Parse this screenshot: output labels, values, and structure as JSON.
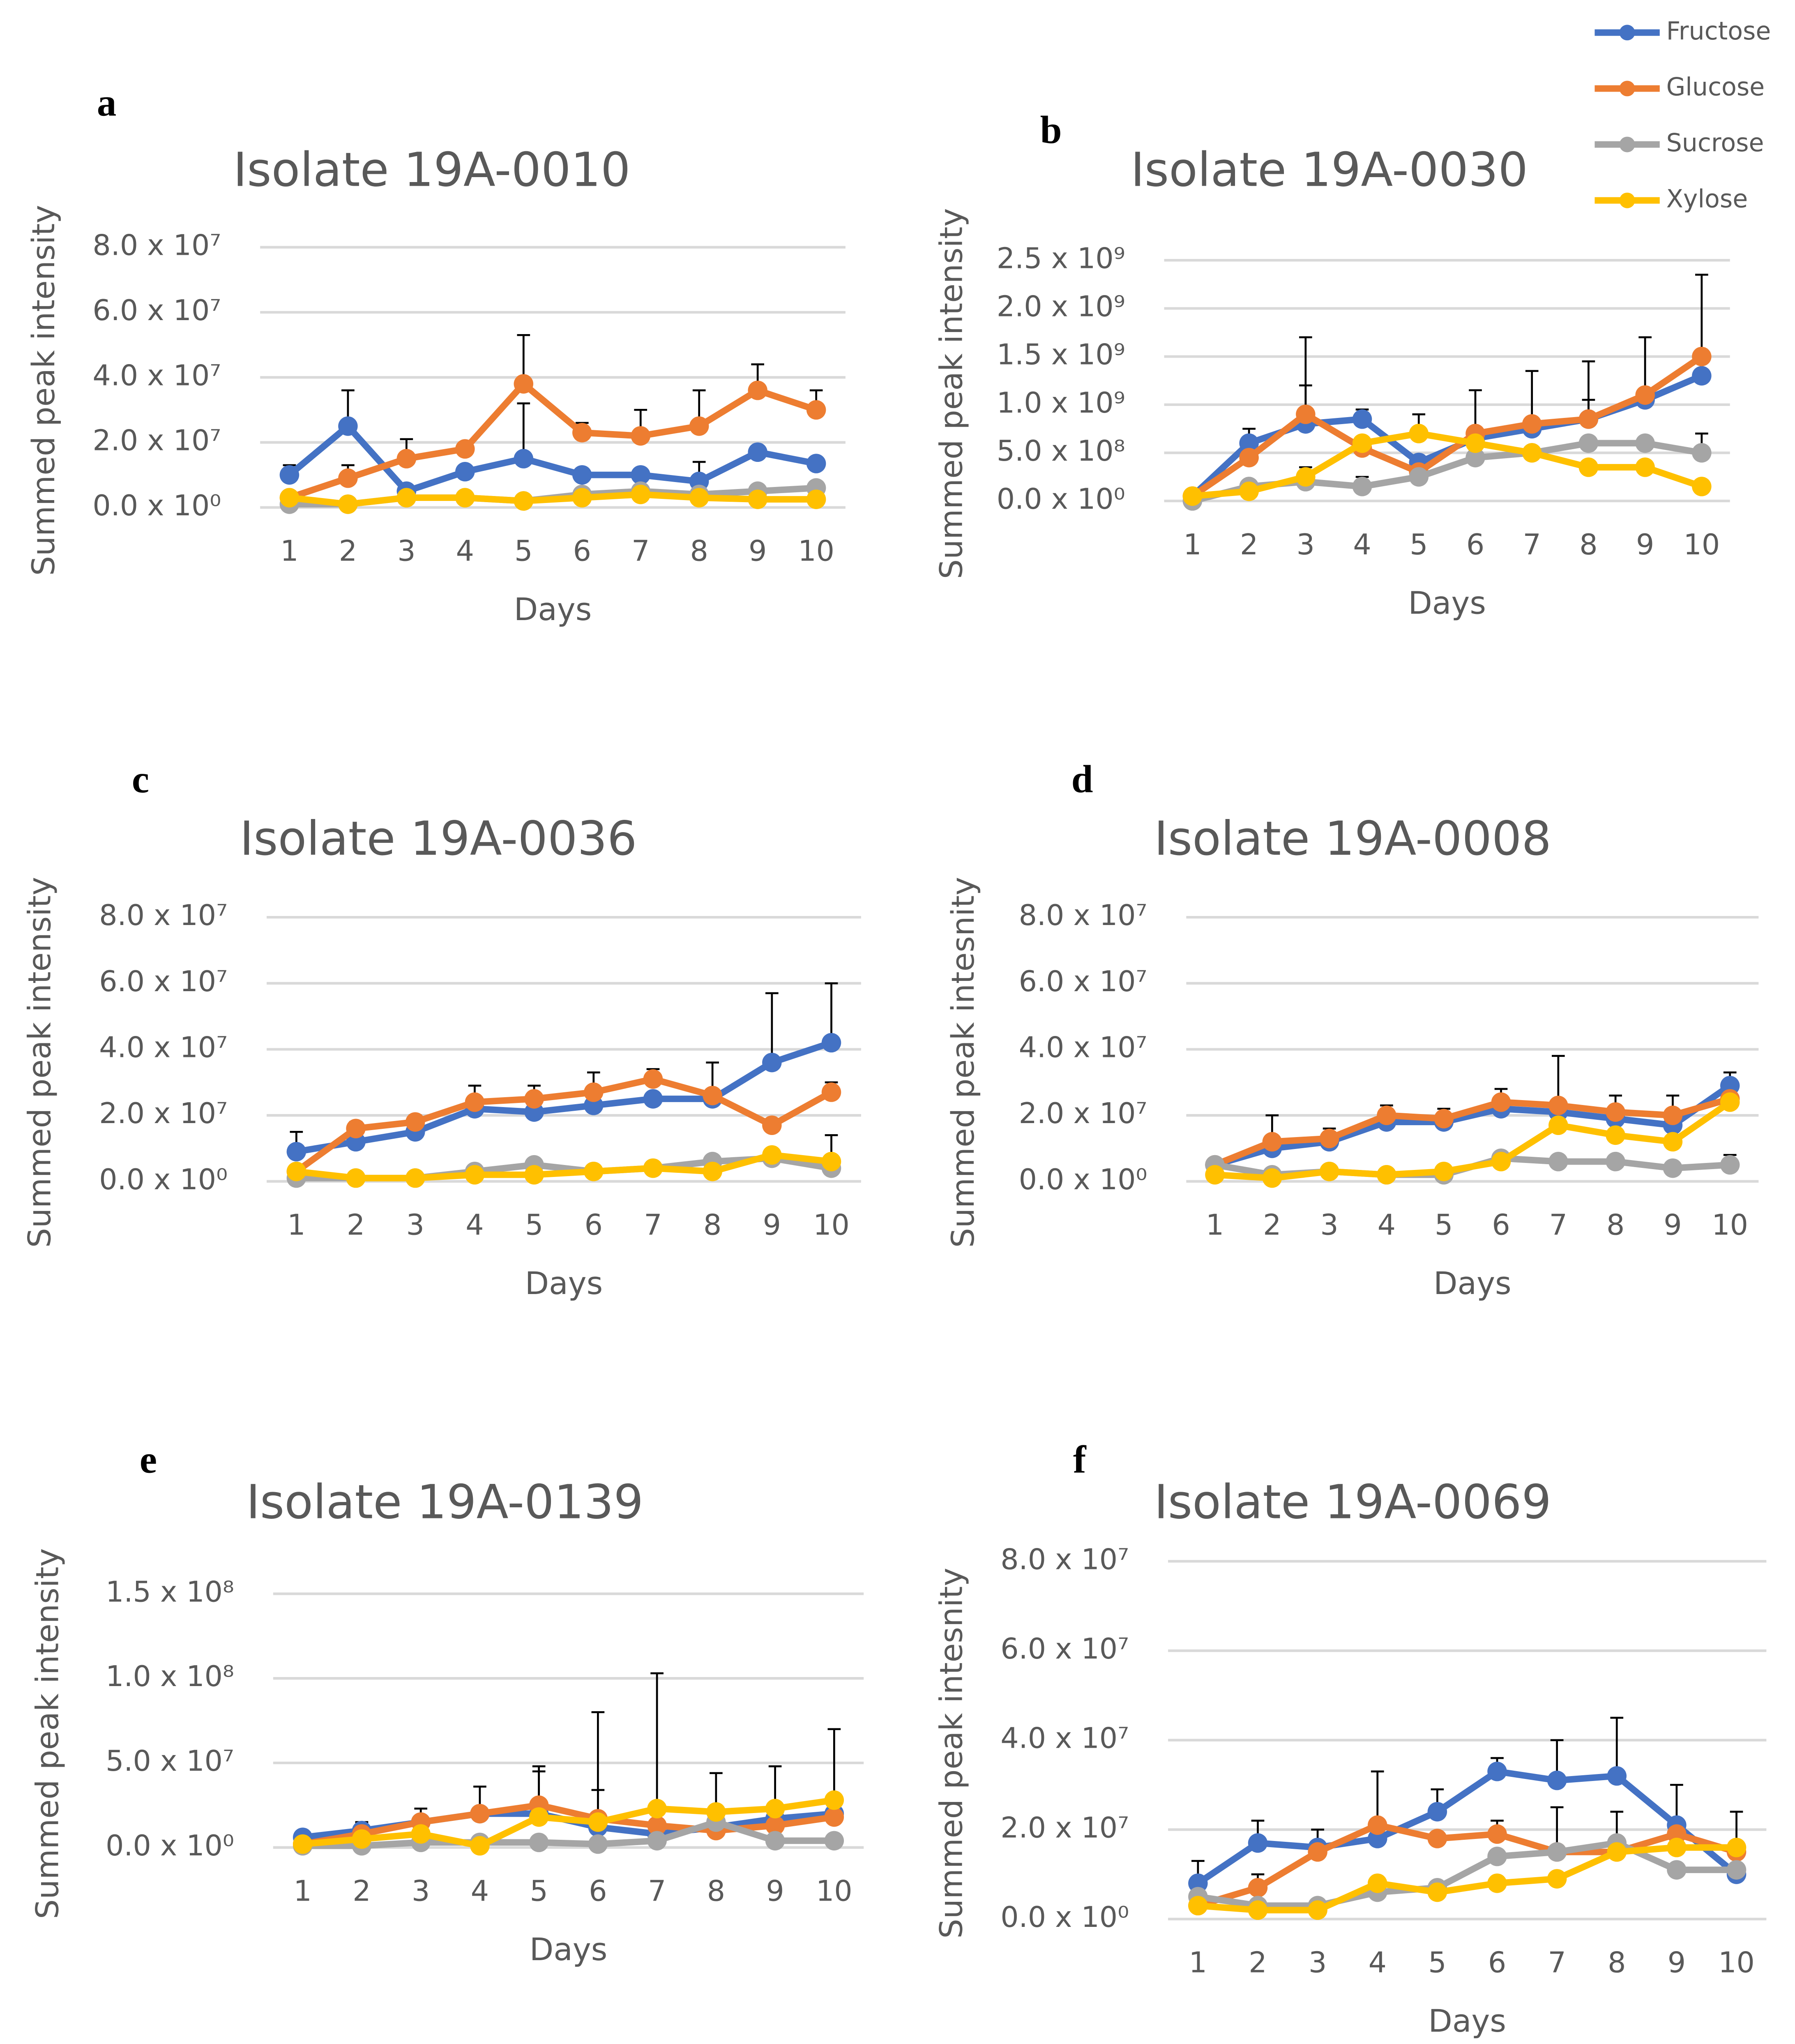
{
  "chart_data": [
    {
      "type": "line",
      "panel": "a",
      "title": "Isolate 19A-0010",
      "xlabel": "Days",
      "ylabel": "Summed peak intensity",
      "categories": [
        1,
        2,
        3,
        4,
        5,
        6,
        7,
        8,
        9,
        10
      ],
      "ylim": [
        0,
        80000000.0
      ],
      "yticks": [
        {
          "value": 0,
          "label": "0.0 x 10⁰"
        },
        {
          "value": 20000000.0,
          "label": "2.0 x 10⁷"
        },
        {
          "value": 40000000.0,
          "label": "4.0 x 10⁷"
        },
        {
          "value": 60000000.0,
          "label": "6.0 x 10⁷"
        },
        {
          "value": 80000000.0,
          "label": "8.0 x 10⁷"
        }
      ],
      "grid": true,
      "series": [
        {
          "name": "Fructose",
          "color": "#4472c4",
          "values": [
            10000000.0,
            25000000.0,
            5000000.0,
            11000000.0,
            15000000.0,
            10000000.0,
            10000000.0,
            8000000.0,
            17000000.0,
            13500000.0
          ],
          "errors": [
            3000000.0,
            11000000.0,
            null,
            null,
            17000000.0,
            null,
            null,
            6000000.0,
            null,
            null
          ]
        },
        {
          "name": "Glucose",
          "color": "#ed7d31",
          "values": [
            3000000.0,
            9000000.0,
            15000000.0,
            18000000.0,
            38000000.0,
            23000000.0,
            22000000.0,
            25000000.0,
            36000000.0,
            30000000.0
          ],
          "errors": [
            null,
            4000000.0,
            6000000.0,
            null,
            15000000.0,
            3000000.0,
            8000000.0,
            11000000.0,
            8000000.0,
            6000000.0
          ]
        },
        {
          "name": "Sucrose",
          "color": "#a5a5a5",
          "values": [
            1000000.0,
            1000000.0,
            3000000.0,
            3000000.0,
            2000000.0,
            4000000.0,
            5000000.0,
            4000000.0,
            5000000.0,
            6000000.0
          ]
        },
        {
          "name": "Xylose",
          "color": "#ffc000",
          "values": [
            3000000.0,
            1000000.0,
            3000000.0,
            3000000.0,
            2000000.0,
            3000000.0,
            4000000.0,
            3000000.0,
            2500000.0,
            2500000.0
          ]
        }
      ]
    },
    {
      "type": "line",
      "panel": "b",
      "title": "Isolate 19A-0030",
      "xlabel": "Days",
      "ylabel": "Summed peak intensity",
      "categories": [
        1,
        2,
        3,
        4,
        5,
        6,
        7,
        8,
        9,
        10
      ],
      "ylim": [
        0,
        2500000000.0
      ],
      "yticks": [
        {
          "value": 0,
          "label": "0.0 x 10⁰"
        },
        {
          "value": 500000000.0,
          "label": "5.0 x 10⁸"
        },
        {
          "value": 1000000000.0,
          "label": "1.0 x 10⁹"
        },
        {
          "value": 1500000000.0,
          "label": "1.5 x 10⁹"
        },
        {
          "value": 2000000000.0,
          "label": "2.0 x 10⁹"
        },
        {
          "value": 2500000000.0,
          "label": "2.5 x 10⁹"
        }
      ],
      "grid": true,
      "series": [
        {
          "name": "Fructose",
          "color": "#4472c4",
          "values": [
            50000000.0,
            600000000.0,
            800000000.0,
            850000000.0,
            400000000.0,
            650000000.0,
            750000000.0,
            850000000.0,
            1050000000.0,
            1300000000.0
          ],
          "errors": [
            null,
            150000000.0,
            400000000.0,
            100000000.0,
            null,
            null,
            null,
            200000000.0,
            null,
            null
          ]
        },
        {
          "name": "Glucose",
          "color": "#ed7d31",
          "values": [
            50000000.0,
            450000000.0,
            900000000.0,
            550000000.0,
            300000000.0,
            700000000.0,
            800000000.0,
            850000000.0,
            1100000000.0,
            1500000000.0
          ],
          "errors": [
            null,
            null,
            800000000.0,
            null,
            null,
            450000000.0,
            550000000.0,
            600000000.0,
            600000000.0,
            850000000.0
          ]
        },
        {
          "name": "Sucrose",
          "color": "#a5a5a5",
          "values": [
            0,
            150000000.0,
            200000000.0,
            150000000.0,
            250000000.0,
            450000000.0,
            500000000.0,
            600000000.0,
            600000000.0,
            500000000.0
          ],
          "errors": [
            null,
            null,
            150000000.0,
            100000000.0,
            null,
            null,
            null,
            null,
            null,
            200000000.0
          ]
        },
        {
          "name": "Xylose",
          "color": "#ffc000",
          "values": [
            50000000.0,
            100000000.0,
            250000000.0,
            600000000.0,
            700000000.0,
            600000000.0,
            500000000.0,
            350000000.0,
            350000000.0,
            150000000.0
          ],
          "errors": [
            null,
            null,
            null,
            null,
            200000000.0,
            null,
            null,
            null,
            null,
            null
          ]
        }
      ]
    },
    {
      "type": "line",
      "panel": "c",
      "title": "Isolate 19A-0036",
      "xlabel": "Days",
      "ylabel": "Summed peak intensity",
      "categories": [
        1,
        2,
        3,
        4,
        5,
        6,
        7,
        8,
        9,
        10
      ],
      "ylim": [
        0,
        80000000.0
      ],
      "yticks": [
        {
          "value": 0,
          "label": "0.0 x 10⁰"
        },
        {
          "value": 20000000.0,
          "label": "2.0 x 10⁷"
        },
        {
          "value": 40000000.0,
          "label": "4.0 x 10⁷"
        },
        {
          "value": 60000000.0,
          "label": "6.0 x 10⁷"
        },
        {
          "value": 80000000.0,
          "label": "8.0 x 10⁷"
        }
      ],
      "grid": true,
      "series": [
        {
          "name": "Fructose",
          "color": "#4472c4",
          "values": [
            9000000.0,
            12000000.0,
            15000000.0,
            22000000.0,
            21000000.0,
            23000000.0,
            25000000.0,
            25000000.0,
            36000000.0,
            42000000.0
          ],
          "errors": [
            6000000.0,
            null,
            null,
            null,
            null,
            null,
            null,
            11000000.0,
            21000000.0,
            18000000.0
          ]
        },
        {
          "name": "Glucose",
          "color": "#ed7d31",
          "values": [
            3000000.0,
            16000000.0,
            18000000.0,
            24000000.0,
            25000000.0,
            27000000.0,
            31000000.0,
            26000000.0,
            17000000.0,
            27000000.0
          ],
          "errors": [
            null,
            2000000.0,
            2000000.0,
            5000000.0,
            4000000.0,
            6000000.0,
            3000000.0,
            null,
            null,
            3000000.0
          ]
        },
        {
          "name": "Sucrose",
          "color": "#a5a5a5",
          "values": [
            1000000.0,
            1000000.0,
            1000000.0,
            3000000.0,
            5000000.0,
            3000000.0,
            4000000.0,
            6000000.0,
            7000000.0,
            4000000.0
          ]
        },
        {
          "name": "Xylose",
          "color": "#ffc000",
          "values": [
            3000000.0,
            1000000.0,
            1000000.0,
            2000000.0,
            2000000.0,
            3000000.0,
            4000000.0,
            3000000.0,
            8000000.0,
            6000000.0
          ],
          "errors": [
            null,
            null,
            null,
            null,
            null,
            null,
            null,
            null,
            null,
            8000000.0
          ]
        }
      ]
    },
    {
      "type": "line",
      "panel": "d",
      "title": "Isolate 19A-0008",
      "xlabel": "Days",
      "ylabel": "Summed peak intesnity",
      "categories": [
        1,
        2,
        3,
        4,
        5,
        6,
        7,
        8,
        9,
        10
      ],
      "ylim": [
        0,
        80000000.0
      ],
      "yticks": [
        {
          "value": 0,
          "label": "0.0 x 10⁰"
        },
        {
          "value": 20000000.0,
          "label": "2.0 x 10⁷"
        },
        {
          "value": 40000000.0,
          "label": "4.0 x 10⁷"
        },
        {
          "value": 60000000.0,
          "label": "6.0 x 10⁷"
        },
        {
          "value": 80000000.0,
          "label": "8.0 x 10⁷"
        }
      ],
      "grid": true,
      "series": [
        {
          "name": "Fructose",
          "color": "#4472c4",
          "values": [
            5000000.0,
            10000000.0,
            12000000.0,
            18000000.0,
            18000000.0,
            22000000.0,
            21000000.0,
            19000000.0,
            17000000.0,
            29000000.0
          ],
          "errors": [
            null,
            null,
            null,
            null,
            null,
            null,
            17000000.0,
            7000000.0,
            9000000.0,
            4000000.0
          ]
        },
        {
          "name": "Glucose",
          "color": "#ed7d31",
          "values": [
            5000000.0,
            12000000.0,
            13000000.0,
            20000000.0,
            19000000.0,
            24000000.0,
            23000000.0,
            21000000.0,
            20000000.0,
            25000000.0
          ],
          "errors": [
            null,
            8000000.0,
            3000000.0,
            3000000.0,
            3000000.0,
            4000000.0,
            null,
            null,
            null,
            null
          ]
        },
        {
          "name": "Sucrose",
          "color": "#a5a5a5",
          "values": [
            5000000.0,
            2000000.0,
            3000000.0,
            2000000.0,
            2000000.0,
            7000000.0,
            6000000.0,
            6000000.0,
            4000000.0,
            5000000.0
          ],
          "errors": [
            null,
            null,
            null,
            null,
            null,
            null,
            null,
            null,
            null,
            3000000.0
          ]
        },
        {
          "name": "Xylose",
          "color": "#ffc000",
          "values": [
            2000000.0,
            1000000.0,
            3000000.0,
            2000000.0,
            3000000.0,
            6000000.0,
            17000000.0,
            14000000.0,
            12000000.0,
            24000000.0
          ]
        }
      ]
    },
    {
      "type": "line",
      "panel": "e",
      "title": "Isolate 19A-0139",
      "xlabel": "Days",
      "ylabel": "Summed peak intensity",
      "categories": [
        1,
        2,
        3,
        4,
        5,
        6,
        7,
        8,
        9,
        10
      ],
      "ylim": [
        0,
        150000000.0
      ],
      "yticks": [
        {
          "value": 0,
          "label": "0.0 x 10⁰"
        },
        {
          "value": 50000000.0,
          "label": "5.0 x 10⁷"
        },
        {
          "value": 100000000.0,
          "label": "1.0 x 10⁸"
        },
        {
          "value": 150000000.0,
          "label": "1.5 x 10⁸"
        }
      ],
      "grid": true,
      "series": [
        {
          "name": "Fructose",
          "color": "#4472c4",
          "values": [
            6000000.0,
            10000000.0,
            15000000.0,
            20000000.0,
            20000000.0,
            12000000.0,
            8000000.0,
            12000000.0,
            17000000.0,
            20000000.0
          ],
          "errors": [
            null,
            5000000.0,
            8000000.0,
            16000000.0,
            28000000.0,
            68000000.0,
            null,
            null,
            31000000.0,
            null
          ]
        },
        {
          "name": "Glucose",
          "color": "#ed7d31",
          "values": [
            2000000.0,
            8000000.0,
            15000000.0,
            20000000.0,
            25000000.0,
            17000000.0,
            13000000.0,
            10000000.0,
            13000000.0,
            18000000.0
          ],
          "errors": [
            null,
            null,
            null,
            null,
            20000000.0,
            17000000.0,
            null,
            null,
            null,
            null
          ]
        },
        {
          "name": "Sucrose",
          "color": "#a5a5a5",
          "values": [
            1000000.0,
            1000000.0,
            3000000.0,
            3000000.0,
            3000000.0,
            2000000.0,
            4000000.0,
            15000000.0,
            4000000.0,
            4000000.0
          ]
        },
        {
          "name": "Xylose",
          "color": "#ffc000",
          "values": [
            2000000.0,
            5000000.0,
            8000000.0,
            1000000.0,
            18000000.0,
            15000000.0,
            23000000.0,
            21000000.0,
            23000000.0,
            28000000.0
          ],
          "errors": [
            null,
            null,
            null,
            null,
            null,
            null,
            80000000.0,
            23000000.0,
            null,
            42000000.0
          ]
        }
      ]
    },
    {
      "type": "line",
      "panel": "f",
      "title": "Isolate 19A-0069",
      "xlabel": "Days",
      "ylabel": "Summed peak intesnity",
      "categories": [
        1,
        2,
        3,
        4,
        5,
        6,
        7,
        8,
        9,
        10
      ],
      "ylim": [
        0,
        80000000.0
      ],
      "yticks": [
        {
          "value": 0,
          "label": "0.0 x 10⁰"
        },
        {
          "value": 20000000.0,
          "label": "2.0 x 10⁷"
        },
        {
          "value": 40000000.0,
          "label": "4.0 x 10⁷"
        },
        {
          "value": 60000000.0,
          "label": "6.0 x 10⁷"
        },
        {
          "value": 80000000.0,
          "label": "8.0 x 10⁷"
        }
      ],
      "grid": true,
      "series": [
        {
          "name": "Fructose",
          "color": "#4472c4",
          "values": [
            8000000.0,
            17000000.0,
            16000000.0,
            18000000.0,
            24000000.0,
            33000000.0,
            31000000.0,
            32000000.0,
            21000000.0,
            10000000.0
          ],
          "errors": [
            5000000.0,
            5000000.0,
            4000000.0,
            null,
            5000000.0,
            3000000.0,
            9000000.0,
            13000000.0,
            9000000.0,
            null
          ]
        },
        {
          "name": "Glucose",
          "color": "#ed7d31",
          "values": [
            3000000.0,
            7000000.0,
            15000000.0,
            21000000.0,
            18000000.0,
            19000000.0,
            15000000.0,
            15000000.0,
            19000000.0,
            15000000.0
          ],
          "errors": [
            null,
            3000000.0,
            null,
            12000000.0,
            null,
            3000000.0,
            10000000.0,
            9000000.0,
            null,
            9000000.0
          ]
        },
        {
          "name": "Sucrose",
          "color": "#a5a5a5",
          "values": [
            5000000.0,
            3000000.0,
            3000000.0,
            6000000.0,
            7000000.0,
            14000000.0,
            15000000.0,
            17000000.0,
            11000000.0,
            11000000.0
          ]
        },
        {
          "name": "Xylose",
          "color": "#ffc000",
          "values": [
            3000000.0,
            2000000.0,
            2000000.0,
            8000000.0,
            6000000.0,
            8000000.0,
            9000000.0,
            15000000.0,
            16000000.0,
            16000000.0
          ]
        }
      ]
    }
  ]
}
